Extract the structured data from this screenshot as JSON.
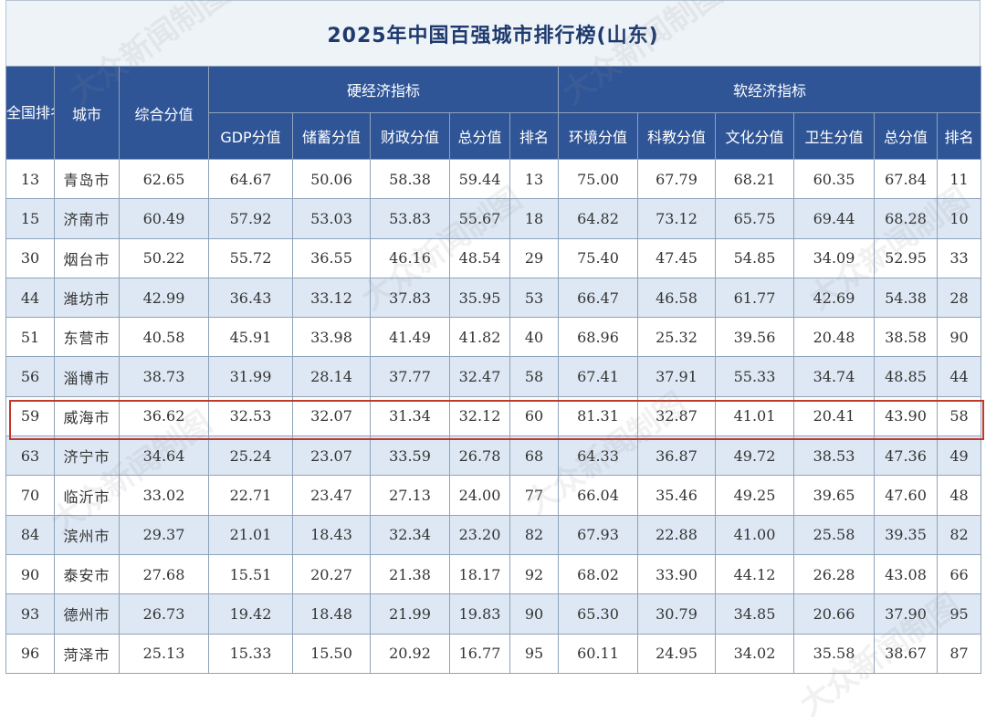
{
  "title": "2025年中国百强城市排行榜(山东)",
  "watermark_text": "大众新闻制图",
  "header": {
    "national_rank": "全国排名",
    "city": "城市",
    "composite_score": "综合分值",
    "hard_economy": "硬经济指标",
    "soft_economy": "软经济指标",
    "hard_cols": [
      "GDP分值",
      "储蓄分值",
      "财政分值",
      "总分值",
      "排名"
    ],
    "soft_cols": [
      "环境分值",
      "科教分值",
      "文化分值",
      "卫生分值",
      "总分值",
      "排名"
    ]
  },
  "highlighted_city": "威海市",
  "rows": [
    {
      "rank": "13",
      "city": "青岛市",
      "composite": "62.65",
      "gdp": "64.67",
      "savings": "50.06",
      "fiscal": "58.38",
      "hard_total": "59.44",
      "hard_rank": "13",
      "env": "75.00",
      "edu": "67.79",
      "culture": "68.21",
      "health": "60.35",
      "soft_total": "67.84",
      "soft_rank": "11"
    },
    {
      "rank": "15",
      "city": "济南市",
      "composite": "60.49",
      "gdp": "57.92",
      "savings": "53.03",
      "fiscal": "53.83",
      "hard_total": "55.67",
      "hard_rank": "18",
      "env": "64.82",
      "edu": "73.12",
      "culture": "65.75",
      "health": "69.44",
      "soft_total": "68.28",
      "soft_rank": "10"
    },
    {
      "rank": "30",
      "city": "烟台市",
      "composite": "50.22",
      "gdp": "55.72",
      "savings": "36.55",
      "fiscal": "46.16",
      "hard_total": "48.54",
      "hard_rank": "29",
      "env": "75.40",
      "edu": "47.45",
      "culture": "54.85",
      "health": "34.09",
      "soft_total": "52.95",
      "soft_rank": "33"
    },
    {
      "rank": "44",
      "city": "潍坊市",
      "composite": "42.99",
      "gdp": "36.43",
      "savings": "33.12",
      "fiscal": "37.83",
      "hard_total": "35.95",
      "hard_rank": "53",
      "env": "66.47",
      "edu": "46.58",
      "culture": "61.77",
      "health": "42.69",
      "soft_total": "54.38",
      "soft_rank": "28"
    },
    {
      "rank": "51",
      "city": "东营市",
      "composite": "40.58",
      "gdp": "45.91",
      "savings": "33.98",
      "fiscal": "41.49",
      "hard_total": "41.82",
      "hard_rank": "40",
      "env": "68.96",
      "edu": "25.32",
      "culture": "39.56",
      "health": "20.48",
      "soft_total": "38.58",
      "soft_rank": "90"
    },
    {
      "rank": "56",
      "city": "淄博市",
      "composite": "38.73",
      "gdp": "31.99",
      "savings": "28.14",
      "fiscal": "37.77",
      "hard_total": "32.47",
      "hard_rank": "58",
      "env": "67.41",
      "edu": "37.91",
      "culture": "55.33",
      "health": "34.74",
      "soft_total": "48.85",
      "soft_rank": "44"
    },
    {
      "rank": "59",
      "city": "威海市",
      "composite": "36.62",
      "gdp": "32.53",
      "savings": "32.07",
      "fiscal": "31.34",
      "hard_total": "32.12",
      "hard_rank": "60",
      "env": "81.31",
      "edu": "32.87",
      "culture": "41.01",
      "health": "20.41",
      "soft_total": "43.90",
      "soft_rank": "58"
    },
    {
      "rank": "63",
      "city": "济宁市",
      "composite": "34.64",
      "gdp": "25.24",
      "savings": "23.07",
      "fiscal": "33.59",
      "hard_total": "26.78",
      "hard_rank": "68",
      "env": "64.33",
      "edu": "36.87",
      "culture": "49.72",
      "health": "38.53",
      "soft_total": "47.36",
      "soft_rank": "49"
    },
    {
      "rank": "70",
      "city": "临沂市",
      "composite": "33.02",
      "gdp": "22.71",
      "savings": "23.47",
      "fiscal": "27.13",
      "hard_total": "24.00",
      "hard_rank": "77",
      "env": "66.04",
      "edu": "35.46",
      "culture": "49.25",
      "health": "39.65",
      "soft_total": "47.60",
      "soft_rank": "48"
    },
    {
      "rank": "84",
      "city": "滨州市",
      "composite": "29.37",
      "gdp": "21.01",
      "savings": "18.43",
      "fiscal": "32.34",
      "hard_total": "23.20",
      "hard_rank": "82",
      "env": "67.93",
      "edu": "22.88",
      "culture": "41.00",
      "health": "25.58",
      "soft_total": "39.35",
      "soft_rank": "82"
    },
    {
      "rank": "90",
      "city": "泰安市",
      "composite": "27.68",
      "gdp": "15.51",
      "savings": "20.27",
      "fiscal": "21.38",
      "hard_total": "18.17",
      "hard_rank": "92",
      "env": "68.02",
      "edu": "33.90",
      "culture": "44.12",
      "health": "26.28",
      "soft_total": "43.08",
      "soft_rank": "66"
    },
    {
      "rank": "93",
      "city": "德州市",
      "composite": "26.73",
      "gdp": "19.42",
      "savings": "18.48",
      "fiscal": "21.99",
      "hard_total": "19.83",
      "hard_rank": "90",
      "env": "65.30",
      "edu": "30.79",
      "culture": "34.85",
      "health": "20.66",
      "soft_total": "37.90",
      "soft_rank": "95"
    },
    {
      "rank": "96",
      "city": "菏泽市",
      "composite": "25.13",
      "gdp": "15.33",
      "savings": "15.50",
      "fiscal": "20.92",
      "hard_total": "16.77",
      "hard_rank": "95",
      "env": "60.11",
      "edu": "24.95",
      "culture": "34.02",
      "health": "35.58",
      "soft_total": "38.67",
      "soft_rank": "87"
    }
  ]
}
